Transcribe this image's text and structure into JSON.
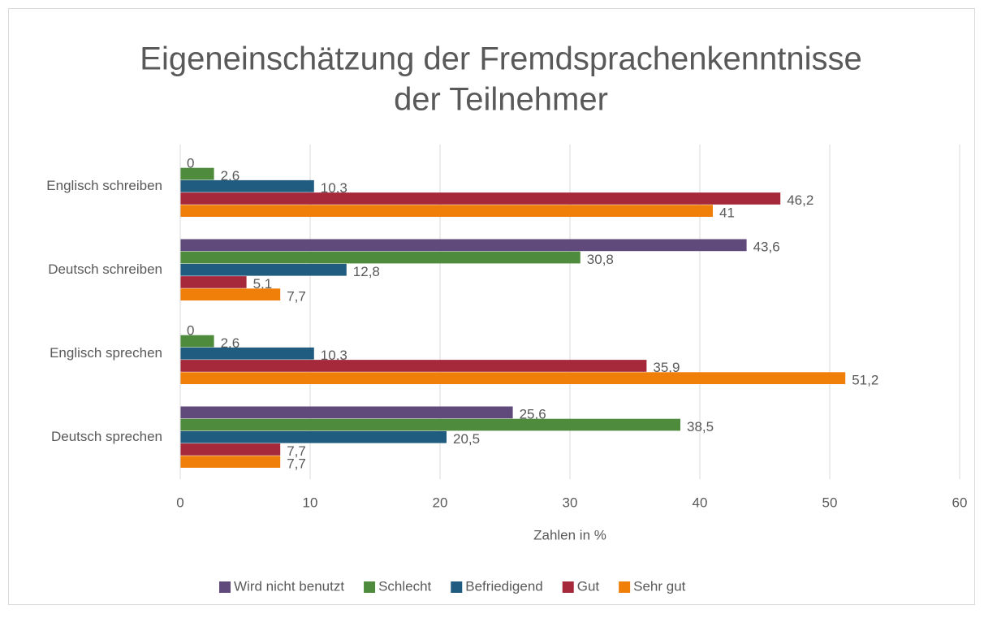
{
  "chart_data": {
    "type": "bar",
    "orientation": "horizontal",
    "title": [
      "Eigeneinschätzung der Fremdsprachenkenntnisse",
      "der Teilnehmer"
    ],
    "x_label": "Zahlen in %",
    "categories": [
      "Englisch schreiben",
      "Deutsch schreiben",
      "Englisch sprechen",
      "Deutsch sprechen"
    ],
    "series": [
      {
        "name": "Wird nicht benutzt",
        "color": "#604a7b",
        "values": [
          0,
          43.6,
          0,
          25.6
        ],
        "value_labels": [
          "0",
          "43,6",
          "0",
          "25,6"
        ]
      },
      {
        "name": "Schlecht",
        "color": "#4e8b3c",
        "values": [
          2.6,
          30.8,
          2.6,
          38.5
        ],
        "value_labels": [
          "2,6",
          "30,8",
          "2,6",
          "38,5"
        ]
      },
      {
        "name": "Befriedigend",
        "color": "#1f5c7f",
        "values": [
          10.3,
          12.8,
          10.3,
          20.5
        ],
        "value_labels": [
          "10,3",
          "12,8",
          "10,3",
          "20,5"
        ]
      },
      {
        "name": "Gut",
        "color": "#a5293a",
        "values": [
          46.2,
          5.1,
          35.9,
          7.7
        ],
        "value_labels": [
          "46,2",
          "5,1",
          "35,9",
          "7,7"
        ]
      },
      {
        "name": "Sehr gut",
        "color": "#f07f09",
        "values": [
          41,
          7.7,
          51.2,
          7.7
        ],
        "value_labels": [
          "41",
          "7,7",
          "51,2",
          "7,7"
        ]
      }
    ],
    "xlim": [
      0,
      60
    ],
    "xticks": [
      0,
      10,
      20,
      30,
      40,
      50,
      60
    ],
    "grid": true,
    "legend": "bottom"
  }
}
